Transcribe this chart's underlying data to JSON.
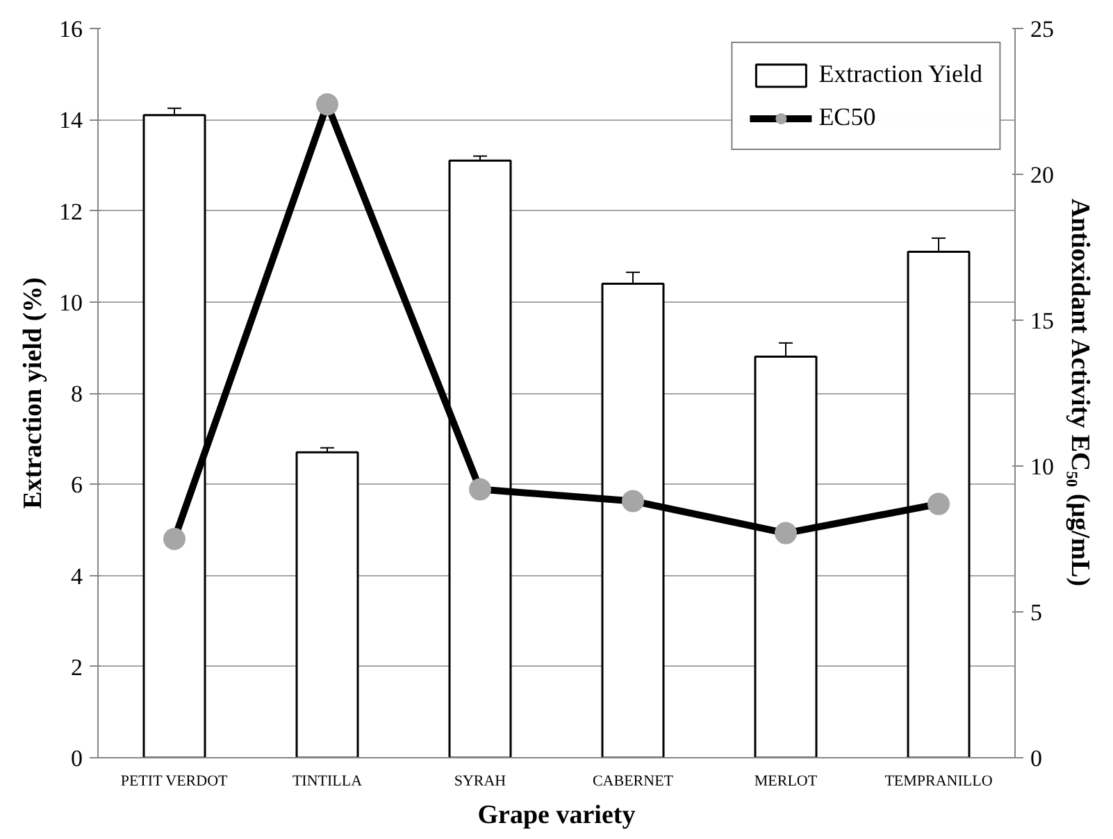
{
  "chart_data": {
    "type": "bar",
    "xlabel": "Grape variety",
    "ylabel": "Extraction yield (%)",
    "y2label": "Antioxidant Activity EC₅₀ (μg/mL)",
    "categories": [
      "PETIT VERDOT",
      "TINTILLA",
      "SYRAH",
      "CABERNET",
      "MERLOT",
      "TEMPRANILLO"
    ],
    "series": [
      {
        "name": "Extraction Yield",
        "color": "#ffffff",
        "values": [
          14.1,
          6.7,
          13.1,
          10.4,
          8.8,
          11.1
        ],
        "errors": [
          0.15,
          0.1,
          0.1,
          0.25,
          0.3,
          0.3
        ]
      },
      {
        "name": "EC50",
        "type": "line",
        "axis": "y2",
        "color": "#000000",
        "values": [
          7.5,
          22.4,
          9.2,
          8.8,
          7.7,
          8.7
        ]
      }
    ],
    "ylim": [
      0,
      16
    ],
    "yticks": [
      0,
      2,
      4,
      6,
      8,
      10,
      12,
      14,
      16
    ],
    "y2lim": [
      0,
      25
    ],
    "y2ticks": [
      0,
      5,
      10,
      15,
      20,
      25
    ],
    "grid": "y",
    "legend": "top right",
    "marker": "circle",
    "line_style": "solid"
  }
}
